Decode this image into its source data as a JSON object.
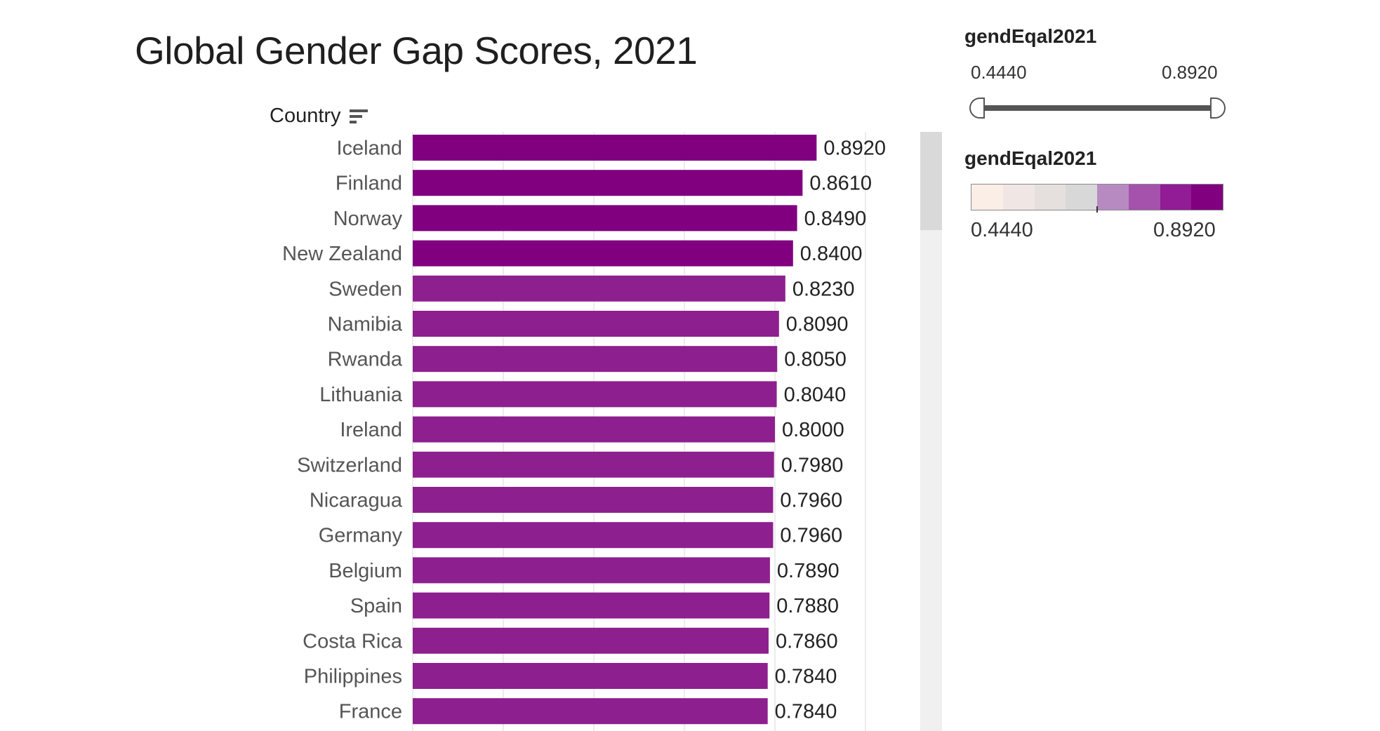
{
  "title": "Global Gender Gap Scores, 2021",
  "column_header": "Country",
  "filter_legend": {
    "title": "gendEqal2021",
    "min": "0.4440",
    "max": "0.8920",
    "range_selected": [
      0.444,
      0.892
    ]
  },
  "color_legend": {
    "title": "gendEqal2021",
    "min": "0.4440",
    "max": "0.8920",
    "swatches": [
      "#fbeee6",
      "#f0e6e4",
      "#e5e0de",
      "#d8d8d8",
      "#b88ac2",
      "#a552ac",
      "#921b96",
      "#800080"
    ]
  },
  "chart_data": {
    "type": "bar",
    "orientation": "horizontal",
    "title": "Global Gender Gap Scores, 2021",
    "ylabel": "Country",
    "xlabel": "",
    "xlim": [
      0,
      1
    ],
    "grid": true,
    "categories": [
      "Iceland",
      "Finland",
      "Norway",
      "New Zealand",
      "Sweden",
      "Namibia",
      "Rwanda",
      "Lithuania",
      "Ireland",
      "Switzerland",
      "Nicaragua",
      "Germany",
      "Belgium",
      "Spain",
      "Costa Rica",
      "Philippines",
      "France"
    ],
    "values": [
      0.892,
      0.861,
      0.849,
      0.84,
      0.823,
      0.809,
      0.805,
      0.804,
      0.8,
      0.798,
      0.796,
      0.796,
      0.789,
      0.788,
      0.786,
      0.784,
      0.784
    ],
    "labels": [
      "0.8920",
      "0.8610",
      "0.8490",
      "0.8400",
      "0.8230",
      "0.8090",
      "0.8050",
      "0.8040",
      "0.8000",
      "0.7980",
      "0.7960",
      "0.7960",
      "0.7890",
      "0.7880",
      "0.7860",
      "0.7840",
      "0.7840"
    ],
    "colors": [
      "#800080",
      "#800080",
      "#800080",
      "#800080",
      "#8e1f8e",
      "#8e1f8e",
      "#8e1f8e",
      "#8e1f8e",
      "#8e1f8e",
      "#8e1f8e",
      "#8e1f8e",
      "#8e1f8e",
      "#8e1f8e",
      "#8e1f8e",
      "#8e1f8e",
      "#8e1f8e",
      "#8e1f8e"
    ],
    "gridline_color": "#e6e6e6"
  }
}
